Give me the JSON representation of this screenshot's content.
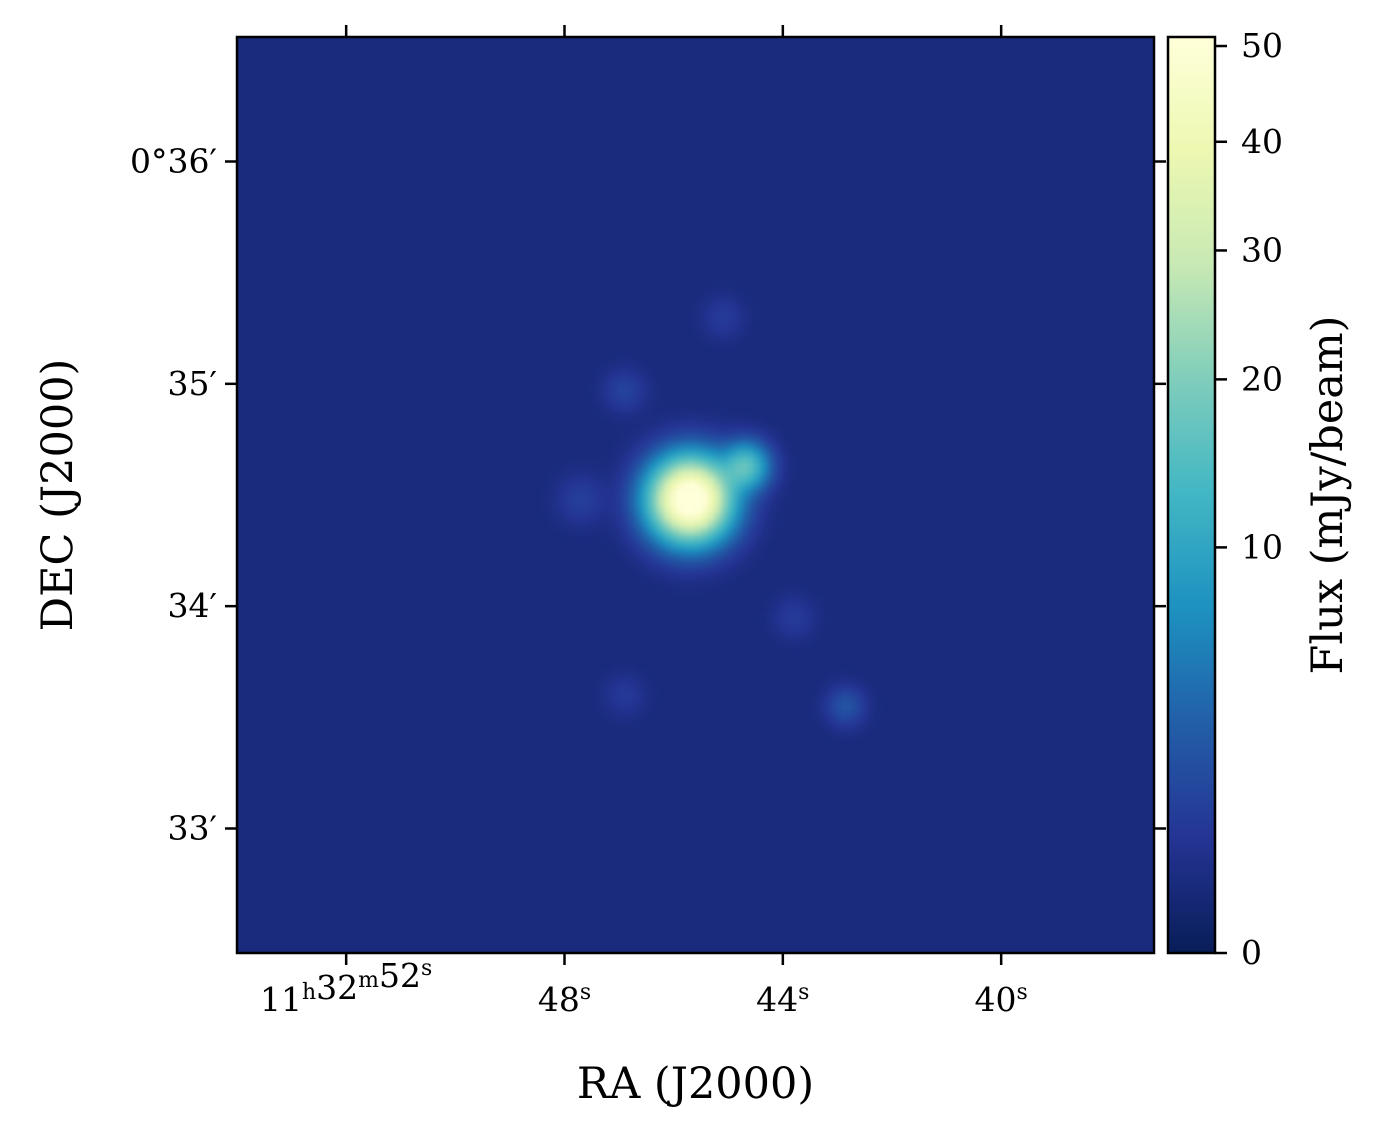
{
  "chart_data": {
    "type": "heatmap",
    "xlabel": "RA (J2000)",
    "ylabel": "DEC (J2000)",
    "colorbar_label": "Flux (mJy/beam)",
    "colormap": "YlGnBu",
    "colorbar_scale": "sqrt",
    "x_ticks": [
      {
        "value": 52,
        "label": "11h32m52s"
      },
      {
        "value": 48,
        "label": "48s"
      },
      {
        "value": 44,
        "label": "44s"
      },
      {
        "value": 40,
        "label": "40s"
      }
    ],
    "y_ticks": [
      {
        "value": 36,
        "label": "0°36′"
      },
      {
        "value": 35,
        "label": "35′"
      },
      {
        "value": 34,
        "label": "34′"
      },
      {
        "value": 33,
        "label": "33′"
      }
    ],
    "colorbar_ticks": [
      0,
      10,
      20,
      30,
      40,
      50
    ],
    "xlim": [
      54.0,
      37.2
    ],
    "ylim": [
      32.44,
      36.56
    ],
    "colorbar_range": [
      0,
      51
    ],
    "sources": [
      {
        "name": "",
        "ra_s": 45.7,
        "dec_arcmin": 34.48,
        "peak_mjy": 60,
        "sigma_arcmin": 0.11
      },
      {
        "name": "",
        "ra_s": 44.68,
        "dec_arcmin": 34.63,
        "peak_mjy": 15,
        "sigma_arcmin": 0.065
      },
      {
        "name": "",
        "ra_s": 42.85,
        "dec_arcmin": 33.55,
        "peak_mjy": 2.2,
        "sigma_arcmin": 0.055
      },
      {
        "name": "",
        "ra_s": 46.9,
        "dec_arcmin": 34.97,
        "peak_mjy": 1.2,
        "sigma_arcmin": 0.06
      },
      {
        "name": "",
        "ra_s": 47.7,
        "dec_arcmin": 34.48,
        "peak_mjy": 1.0,
        "sigma_arcmin": 0.07
      },
      {
        "name": "",
        "ra_s": 45.1,
        "dec_arcmin": 35.3,
        "peak_mjy": 0.8,
        "sigma_arcmin": 0.06
      },
      {
        "name": "",
        "ra_s": 43.8,
        "dec_arcmin": 33.95,
        "peak_mjy": 0.8,
        "sigma_arcmin": 0.06
      },
      {
        "name": "",
        "ra_s": 46.9,
        "dec_arcmin": 33.6,
        "peak_mjy": 0.7,
        "sigma_arcmin": 0.06
      }
    ],
    "background_mjy": 0.3
  }
}
